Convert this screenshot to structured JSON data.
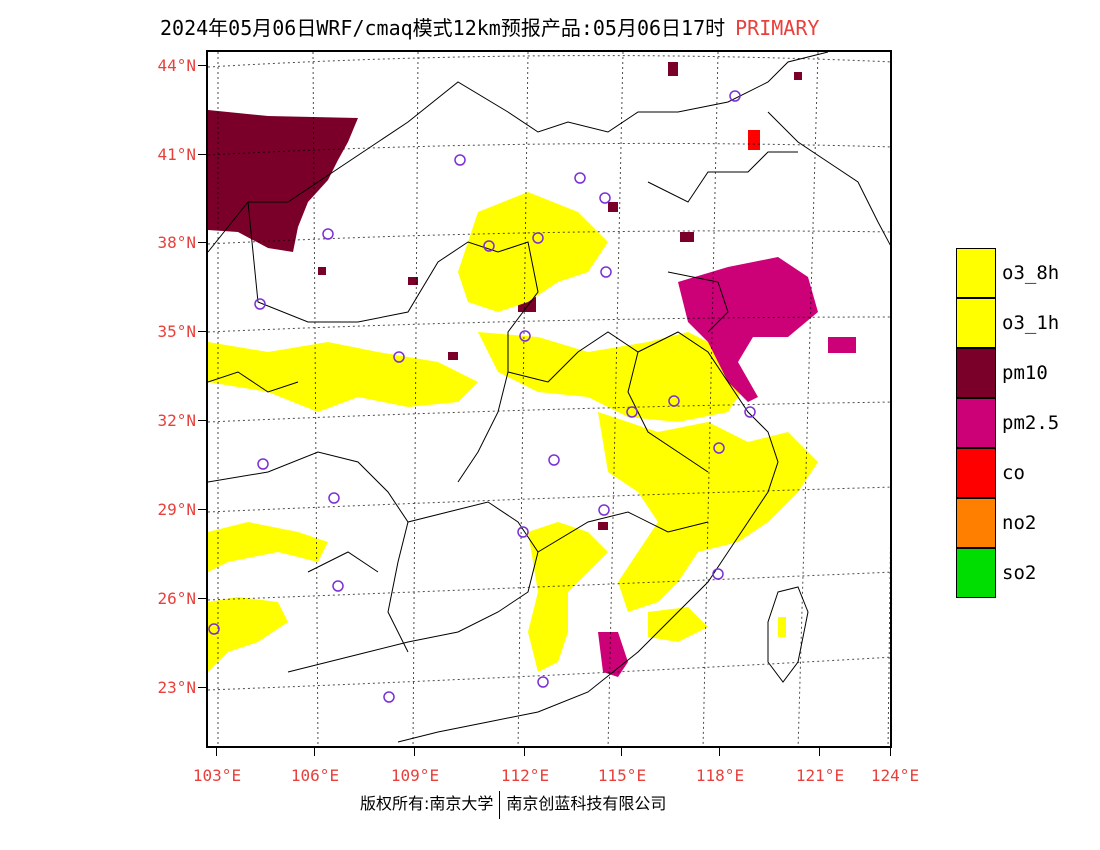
{
  "header": {
    "title": "2024年05月06日WRF/cmaq模式12km预报产品:05月06日17时",
    "tag": "PRIMARY"
  },
  "axes": {
    "lat_labels": [
      "44°N",
      "41°N",
      "38°N",
      "35°N",
      "32°N",
      "29°N",
      "26°N",
      "23°N"
    ],
    "lon_labels": [
      "103°E",
      "106°E",
      "109°E",
      "112°E",
      "115°E",
      "118°E",
      "121°E",
      "124°E"
    ]
  },
  "legend": [
    {
      "label": "o3_8h",
      "color": "#ffff00"
    },
    {
      "label": "o3_1h",
      "color": "#ffff00"
    },
    {
      "label": "pm10",
      "color": "#7a0029"
    },
    {
      "label": "pm2.5",
      "color": "#cc0077"
    },
    {
      "label": "co",
      "color": "#ff0000"
    },
    {
      "label": "no2",
      "color": "#ff8000"
    },
    {
      "label": "so2",
      "color": "#00dd00"
    }
  ],
  "colors": {
    "label_red": "#e8403c",
    "station_ring": "#7b2fd6"
  },
  "credit": {
    "left": "版权所有:南京大学",
    "right": "南京创蓝科技有限公司"
  }
}
